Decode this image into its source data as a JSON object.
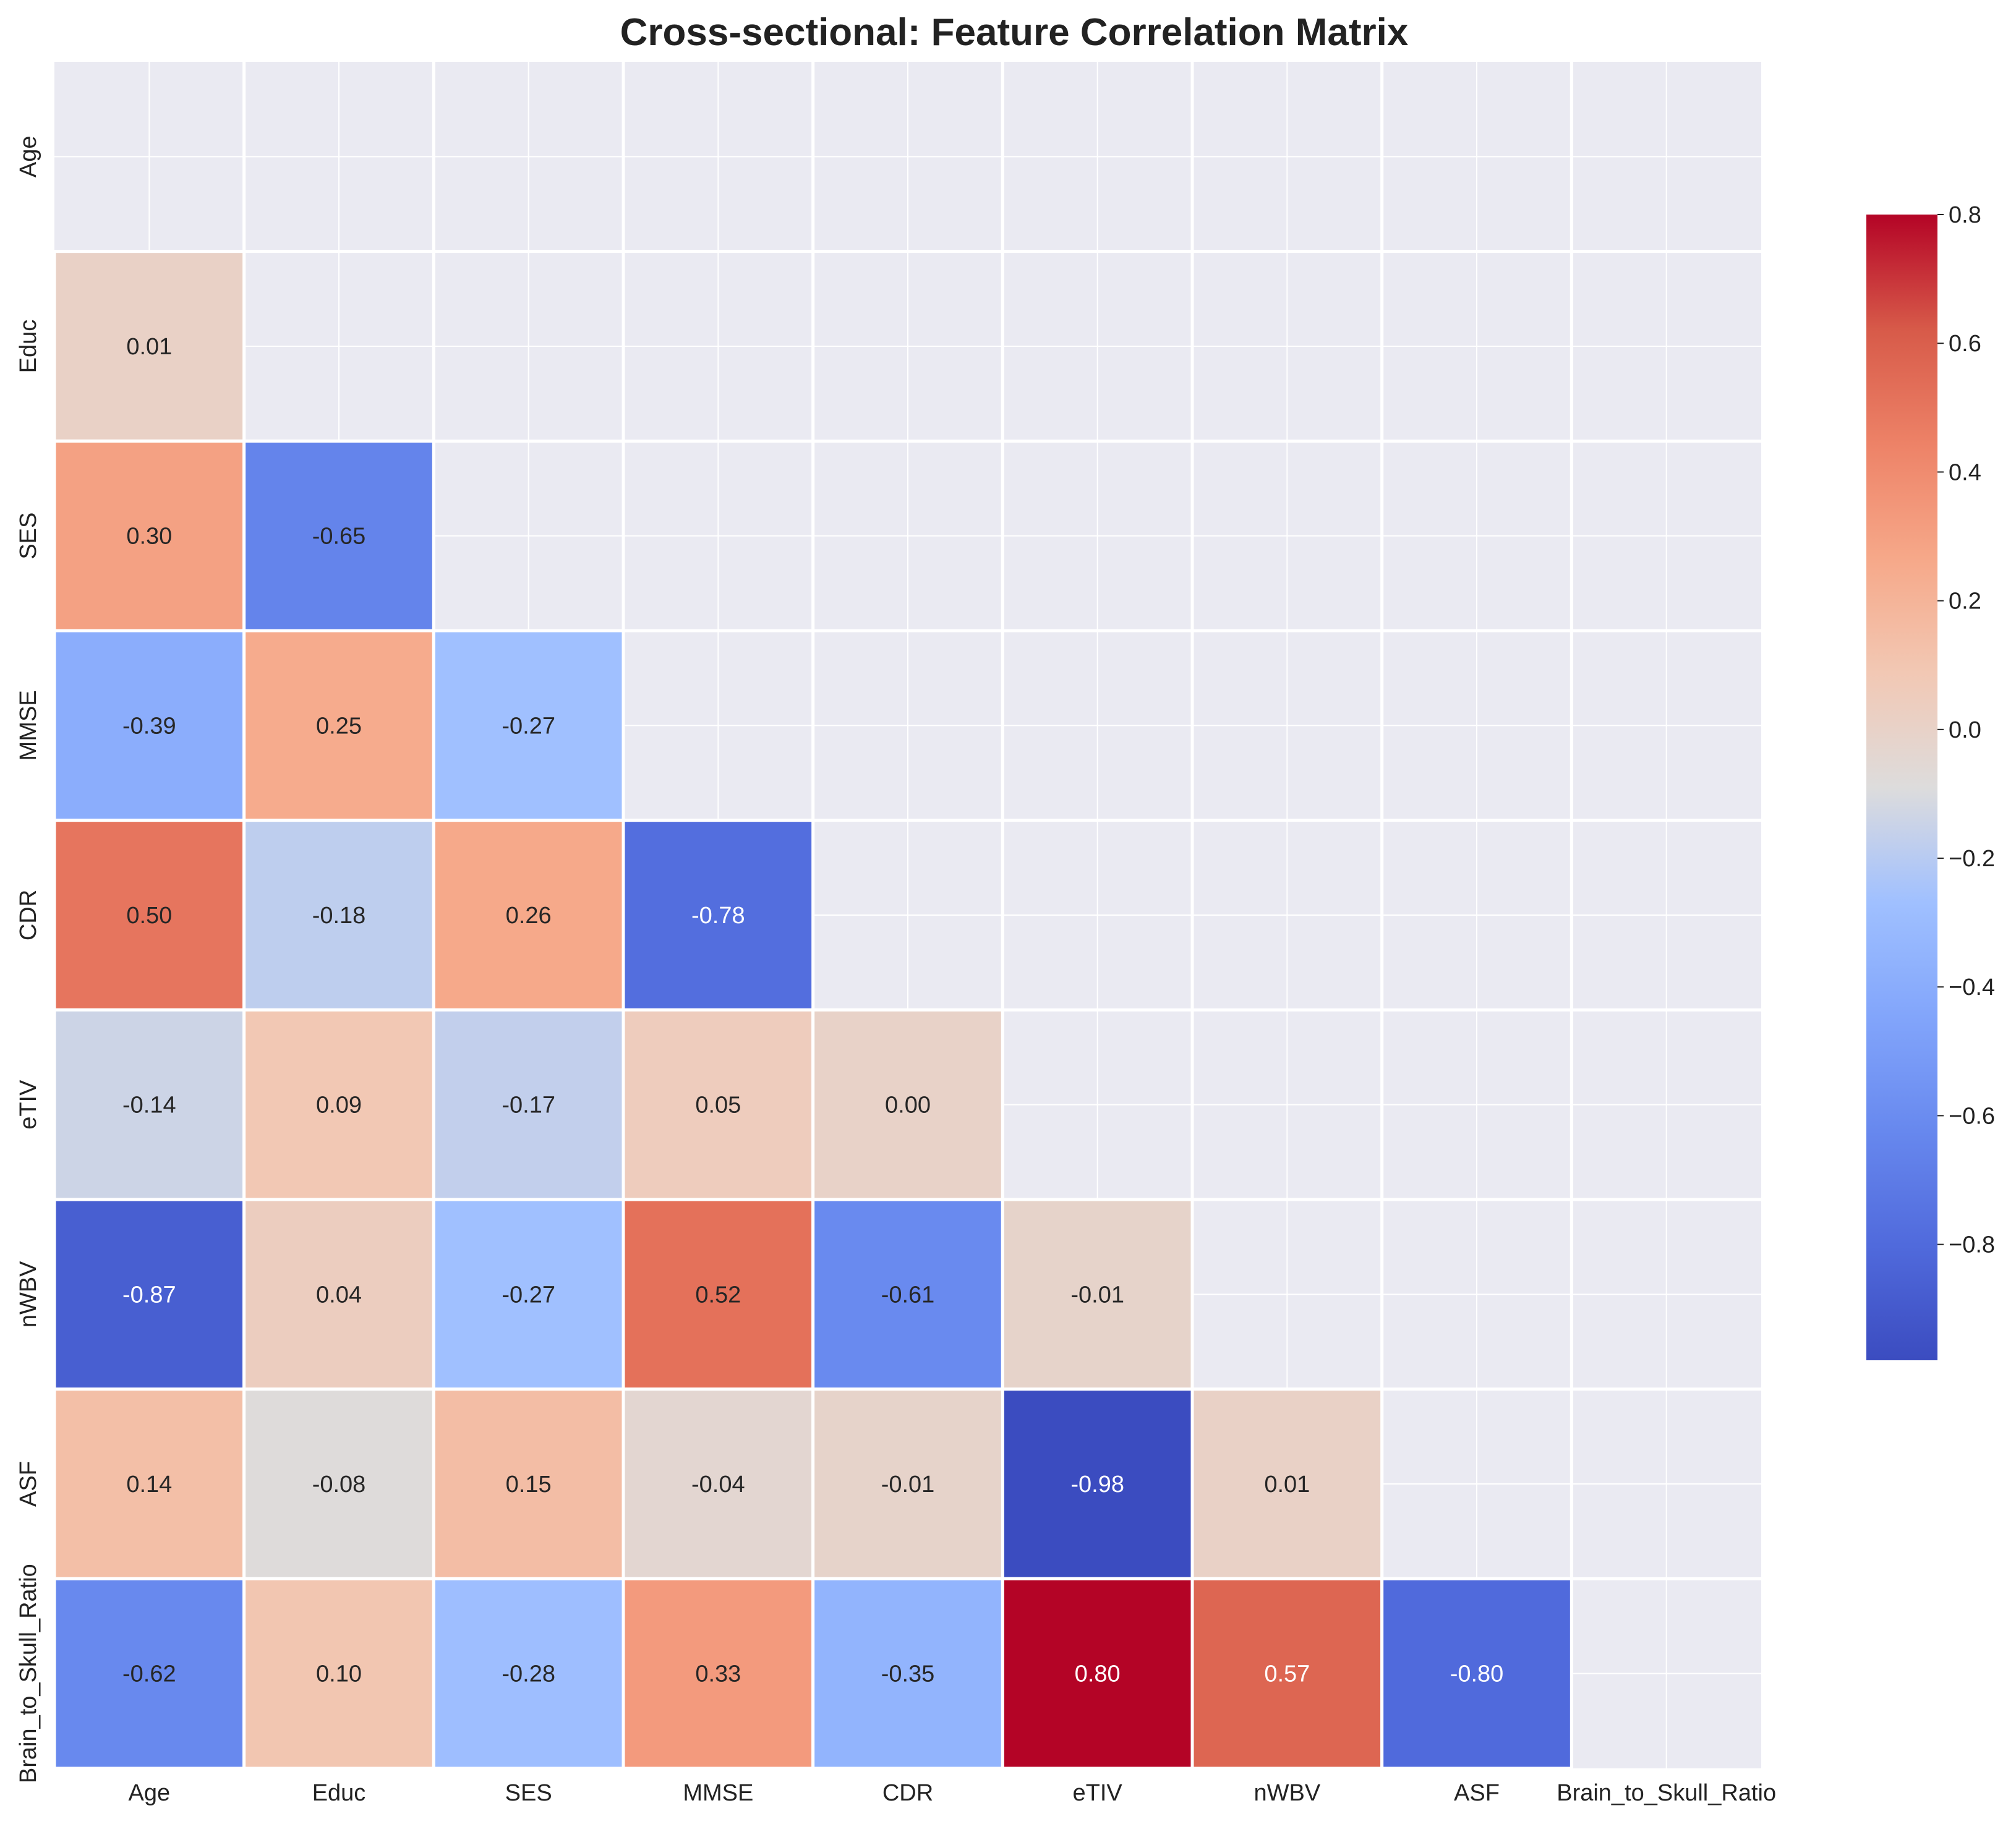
{
  "chart_data": {
    "type": "heatmap",
    "title": "Cross-sectional: Feature Correlation Matrix",
    "variables": [
      "Age",
      "Educ",
      "SES",
      "MMSE",
      "CDR",
      "eTIV",
      "nWBV",
      "ASF",
      "Brain_to_Skull_Ratio"
    ],
    "mask": "upper-triangle-including-diagonal",
    "lower_triangle": [
      [],
      [
        0.01
      ],
      [
        0.3,
        -0.65
      ],
      [
        -0.39,
        0.25,
        -0.27
      ],
      [
        0.5,
        -0.18,
        0.26,
        -0.78
      ],
      [
        -0.14,
        0.09,
        -0.17,
        0.05,
        0.0
      ],
      [
        -0.87,
        0.04,
        -0.27,
        0.52,
        -0.61,
        -0.01
      ],
      [
        0.14,
        -0.08,
        0.15,
        -0.04,
        -0.01,
        -0.98,
        0.01
      ],
      [
        -0.62,
        0.1,
        -0.28,
        0.33,
        -0.35,
        0.8,
        0.57,
        -0.8
      ]
    ],
    "value_format": "2 decimals",
    "colormap": "coolwarm",
    "vmin": -0.98,
    "vmax": 0.8,
    "colorbar_ticks": [
      0.8,
      0.6,
      0.4,
      0.2,
      0.0,
      -0.2,
      -0.4,
      -0.6,
      -0.8
    ],
    "colorbar_labels": [
      "0.8",
      "0.6",
      "0.4",
      "0.2",
      "0.0",
      "−0.2",
      "−0.4",
      "−0.6",
      "−0.8"
    ],
    "colors": {
      "masked_background": "#eaeaf2",
      "grid_line": "#ffffff",
      "dark_text": "#262626",
      "light_text": "#ffffff"
    }
  }
}
